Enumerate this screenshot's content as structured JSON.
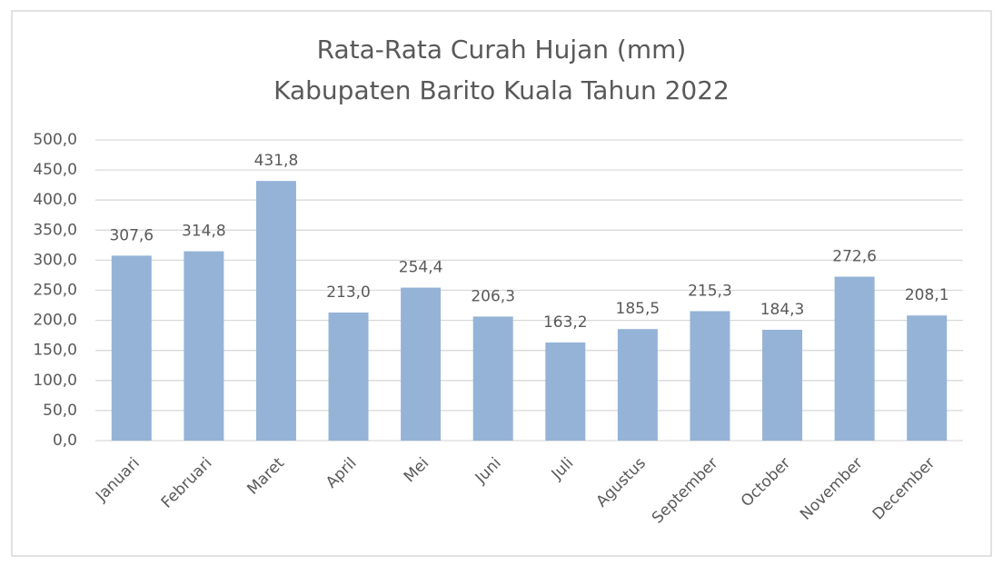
{
  "chart_data": {
    "type": "bar",
    "title": "Rata-Rata Curah Hujan (mm)",
    "subtitle": "Kabupaten Barito Kuala Tahun 2022",
    "categories": [
      "Januari",
      "Februari",
      "Maret",
      "April",
      "Mei",
      "Juni",
      "Juli",
      "Agustus",
      "September",
      "October",
      "November",
      "December"
    ],
    "values": [
      307.6,
      314.8,
      431.8,
      213.0,
      254.4,
      206.3,
      163.2,
      185.5,
      215.3,
      184.3,
      272.6,
      208.1
    ],
    "value_labels": [
      "307,6",
      "314,8",
      "431,8",
      "213,0",
      "254,4",
      "206,3",
      "163,2",
      "185,5",
      "215,3",
      "184,3",
      "272,6",
      "208,1"
    ],
    "color": "#95b3d7",
    "ylim": [
      0,
      500
    ],
    "yticks": [
      {
        "value": 0,
        "label": "0,0"
      },
      {
        "value": 50,
        "label": "50,0"
      },
      {
        "value": 100,
        "label": "100,0"
      },
      {
        "value": 150,
        "label": "150,0"
      },
      {
        "value": 200,
        "label": "200,0"
      },
      {
        "value": 250,
        "label": "250,0"
      },
      {
        "value": 300,
        "label": "300,0"
      },
      {
        "value": 350,
        "label": "350,0"
      },
      {
        "value": 400,
        "label": "400,0"
      },
      {
        "value": 450,
        "label": "450,0"
      },
      {
        "value": 500,
        "label": "500,0"
      }
    ],
    "grid": true
  }
}
